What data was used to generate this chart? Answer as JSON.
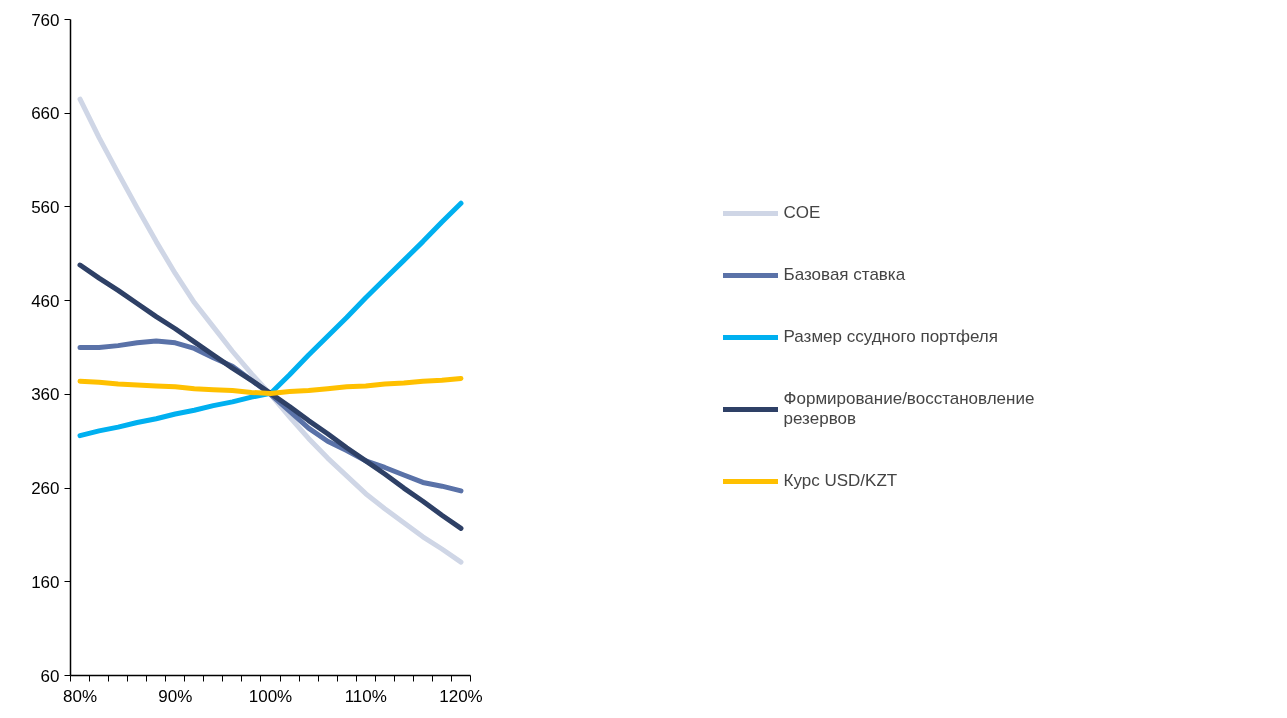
{
  "chart_data": {
    "type": "line",
    "categories": [
      "80%",
      null,
      null,
      null,
      null,
      "90%",
      null,
      null,
      null,
      null,
      "100%",
      null,
      null,
      null,
      null,
      "110%",
      null,
      null,
      null,
      null,
      "120%"
    ],
    "series": [
      {
        "name": "COE",
        "color": "#cfd6e6",
        "values": [
          675,
          634,
          596,
          559,
          523,
          489,
          458,
          432,
          406,
          382,
          360,
          336,
          313,
          292,
          273,
          254,
          238,
          223,
          208,
          195,
          181
        ]
      },
      {
        "name": "Базовая ставка",
        "color": "#5a72a8",
        "values": [
          410,
          410,
          412,
          415,
          417,
          415,
          409,
          399,
          390,
          375,
          360,
          342,
          324,
          310,
          300,
          289,
          282,
          274,
          266,
          262,
          257
        ]
      },
      {
        "name": "Размер ссудного портфеля",
        "color": "#00b0f0",
        "values": [
          316,
          321,
          325,
          330,
          334,
          339,
          343,
          348,
          352,
          357,
          361,
          381,
          402,
          422,
          442,
          463,
          483,
          503,
          523,
          544,
          564
        ]
      },
      {
        "name": "Формирование/восстановление резервов",
        "color": "#2e4066",
        "values": [
          498,
          484,
          471,
          457,
          443,
          430,
          416,
          402,
          388,
          375,
          361,
          347,
          332,
          318,
          303,
          289,
          275,
          260,
          246,
          231,
          217
        ]
      },
      {
        "name": "Курс USD/KZT",
        "color": "#ffc000",
        "values": [
          374,
          373,
          371,
          370,
          369,
          368,
          366,
          365,
          364,
          362,
          361,
          363,
          364,
          366,
          368,
          369,
          371,
          372,
          374,
          375,
          377
        ]
      }
    ],
    "ylim": [
      60,
      760
    ],
    "yticks": [
      60,
      160,
      260,
      360,
      460,
      560,
      660,
      760
    ],
    "grid": false,
    "legend": "right",
    "marker": "none",
    "line_style": "solid"
  }
}
